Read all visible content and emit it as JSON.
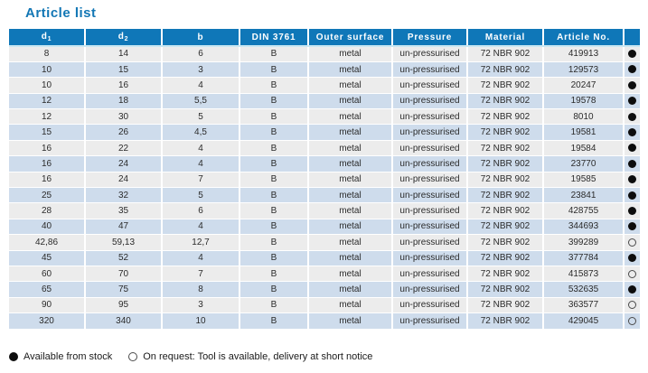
{
  "page": {
    "title": "Article list"
  },
  "colors": {
    "header_blue": "#0f77b8",
    "title_blue": "#1377b5",
    "row_gray": "#ececec",
    "row_blue": "#cedcec",
    "accent_line": "#c9e7f2",
    "dot_black": "#0d0d0d"
  },
  "table": {
    "columns": [
      {
        "key": "d1",
        "label": "d",
        "sub": "1"
      },
      {
        "key": "d2",
        "label": "d",
        "sub": "2"
      },
      {
        "key": "b",
        "label": "b",
        "sub": ""
      },
      {
        "key": "din",
        "label": "DIN 3761",
        "sub": ""
      },
      {
        "key": "outer_surface",
        "label": "Outer surface",
        "sub": ""
      },
      {
        "key": "pressure",
        "label": "Pressure",
        "sub": ""
      },
      {
        "key": "material",
        "label": "Material",
        "sub": ""
      },
      {
        "key": "article_no",
        "label": "Article No.",
        "sub": ""
      },
      {
        "key": "stock",
        "label": "",
        "sub": ""
      }
    ],
    "rows": [
      {
        "d1": "8",
        "d2": "14",
        "b": "6",
        "din": "B",
        "outer_surface": "metal",
        "pressure": "un-pressurised",
        "material": "72 NBR 902",
        "article_no": "419913",
        "stock": "filled"
      },
      {
        "d1": "10",
        "d2": "15",
        "b": "3",
        "din": "B",
        "outer_surface": "metal",
        "pressure": "un-pressurised",
        "material": "72 NBR 902",
        "article_no": "129573",
        "stock": "filled"
      },
      {
        "d1": "10",
        "d2": "16",
        "b": "4",
        "din": "B",
        "outer_surface": "metal",
        "pressure": "un-pressurised",
        "material": "72 NBR 902",
        "article_no": "20247",
        "stock": "filled"
      },
      {
        "d1": "12",
        "d2": "18",
        "b": "5,5",
        "din": "B",
        "outer_surface": "metal",
        "pressure": "un-pressurised",
        "material": "72 NBR 902",
        "article_no": "19578",
        "stock": "filled"
      },
      {
        "d1": "12",
        "d2": "30",
        "b": "5",
        "din": "B",
        "outer_surface": "metal",
        "pressure": "un-pressurised",
        "material": "72 NBR 902",
        "article_no": "8010",
        "stock": "filled"
      },
      {
        "d1": "15",
        "d2": "26",
        "b": "4,5",
        "din": "B",
        "outer_surface": "metal",
        "pressure": "un-pressurised",
        "material": "72 NBR 902",
        "article_no": "19581",
        "stock": "filled"
      },
      {
        "d1": "16",
        "d2": "22",
        "b": "4",
        "din": "B",
        "outer_surface": "metal",
        "pressure": "un-pressurised",
        "material": "72 NBR 902",
        "article_no": "19584",
        "stock": "filled"
      },
      {
        "d1": "16",
        "d2": "24",
        "b": "4",
        "din": "B",
        "outer_surface": "metal",
        "pressure": "un-pressurised",
        "material": "72 NBR 902",
        "article_no": "23770",
        "stock": "filled"
      },
      {
        "d1": "16",
        "d2": "24",
        "b": "7",
        "din": "B",
        "outer_surface": "metal",
        "pressure": "un-pressurised",
        "material": "72 NBR 902",
        "article_no": "19585",
        "stock": "filled"
      },
      {
        "d1": "25",
        "d2": "32",
        "b": "5",
        "din": "B",
        "outer_surface": "metal",
        "pressure": "un-pressurised",
        "material": "72 NBR 902",
        "article_no": "23841",
        "stock": "filled"
      },
      {
        "d1": "28",
        "d2": "35",
        "b": "6",
        "din": "B",
        "outer_surface": "metal",
        "pressure": "un-pressurised",
        "material": "72 NBR 902",
        "article_no": "428755",
        "stock": "filled"
      },
      {
        "d1": "40",
        "d2": "47",
        "b": "4",
        "din": "B",
        "outer_surface": "metal",
        "pressure": "un-pressurised",
        "material": "72 NBR 902",
        "article_no": "344693",
        "stock": "filled"
      },
      {
        "d1": "42,86",
        "d2": "59,13",
        "b": "12,7",
        "din": "B",
        "outer_surface": "metal",
        "pressure": "un-pressurised",
        "material": "72 NBR 902",
        "article_no": "399289",
        "stock": "open"
      },
      {
        "d1": "45",
        "d2": "52",
        "b": "4",
        "din": "B",
        "outer_surface": "metal",
        "pressure": "un-pressurised",
        "material": "72 NBR 902",
        "article_no": "377784",
        "stock": "filled"
      },
      {
        "d1": "60",
        "d2": "70",
        "b": "7",
        "din": "B",
        "outer_surface": "metal",
        "pressure": "un-pressurised",
        "material": "72 NBR 902",
        "article_no": "415873",
        "stock": "open"
      },
      {
        "d1": "65",
        "d2": "75",
        "b": "8",
        "din": "B",
        "outer_surface": "metal",
        "pressure": "un-pressurised",
        "material": "72 NBR 902",
        "article_no": "532635",
        "stock": "filled"
      },
      {
        "d1": "90",
        "d2": "95",
        "b": "3",
        "din": "B",
        "outer_surface": "metal",
        "pressure": "un-pressurised",
        "material": "72 NBR 902",
        "article_no": "363577",
        "stock": "open"
      },
      {
        "d1": "320",
        "d2": "340",
        "b": "10",
        "din": "B",
        "outer_surface": "metal",
        "pressure": "un-pressurised",
        "material": "72 NBR 902",
        "article_no": "429045",
        "stock": "open"
      }
    ]
  },
  "legend": {
    "available": "Available from stock",
    "on_request": "On request: Tool is available, delivery at short notice"
  }
}
